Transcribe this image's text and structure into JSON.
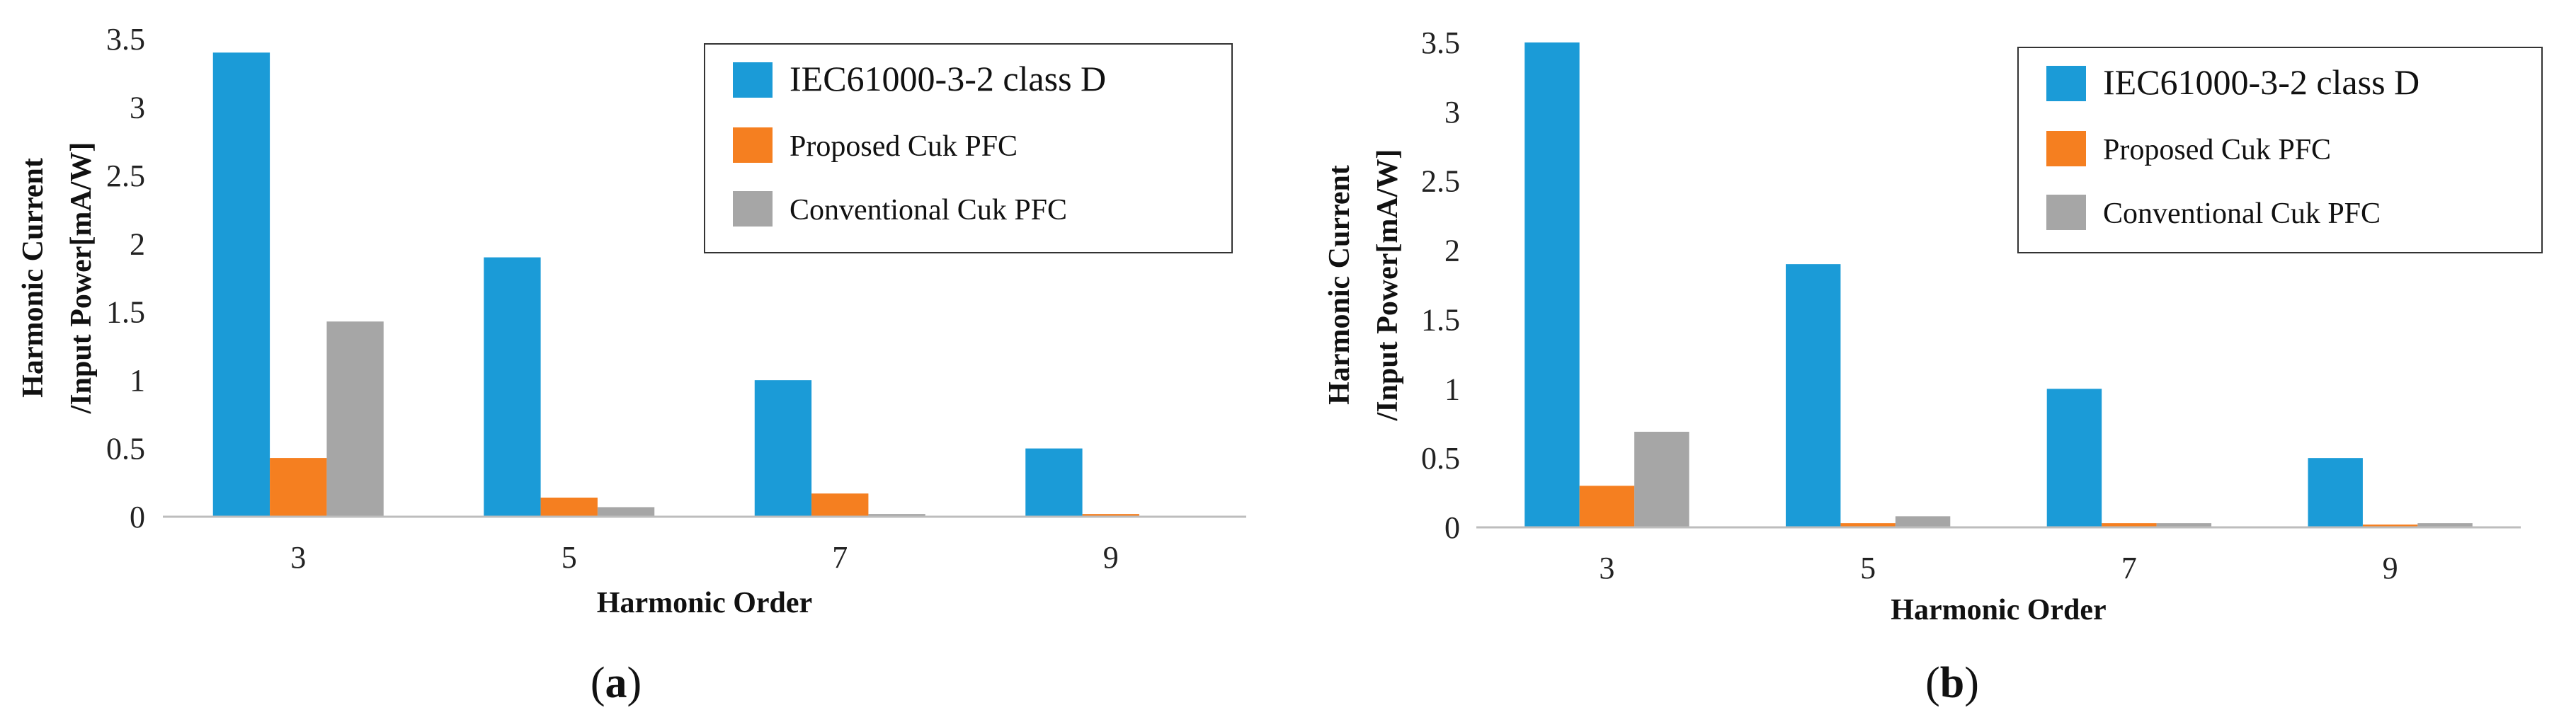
{
  "chart_data": [
    {
      "type": "bar",
      "panel": "a",
      "caption_open": "(",
      "caption_letter": "a",
      "caption_close": ")",
      "categories": [
        "3",
        "5",
        "7",
        "9"
      ],
      "series": [
        {
          "name": "IEC61000-3-2 class D",
          "color": "#1b9bd7",
          "values": [
            3.4,
            1.9,
            1.0,
            0.5
          ]
        },
        {
          "name": "Proposed Cuk PFC",
          "color": "#f57f20",
          "values": [
            0.43,
            0.14,
            0.17,
            0.02
          ]
        },
        {
          "name": "Conventional Cuk PFC",
          "color": "#a6a6a6",
          "values": [
            1.43,
            0.07,
            0.02,
            0.0
          ]
        }
      ],
      "yticks": [
        "0",
        "0.5",
        "1",
        "1.5",
        "2",
        "2.5",
        "3",
        "3.5"
      ],
      "ylim": [
        0,
        3.5
      ],
      "xlabel": "Harmonic Order",
      "ylabel_line1": "Harmonic Current",
      "ylabel_line2": "/Input Power[mA/W]",
      "legend_position": "top-right"
    },
    {
      "type": "bar",
      "panel": "b",
      "caption_open": "(",
      "caption_letter": "b",
      "caption_close": ")",
      "categories": [
        "3",
        "5",
        "7",
        "9"
      ],
      "series": [
        {
          "name": "IEC61000-3-2 class D",
          "color": "#1b9bd7",
          "values": [
            3.5,
            1.9,
            1.0,
            0.5
          ]
        },
        {
          "name": "Proposed Cuk PFC",
          "color": "#f57f20",
          "values": [
            0.3,
            0.03,
            0.03,
            0.02
          ]
        },
        {
          "name": "Conventional Cuk PFC",
          "color": "#a6a6a6",
          "values": [
            0.69,
            0.08,
            0.03,
            0.03
          ]
        }
      ],
      "yticks": [
        "0",
        "0.5",
        "1",
        "1.5",
        "2",
        "2.5",
        "3",
        "3.5"
      ],
      "ylim": [
        0,
        3.5
      ],
      "xlabel": "Harmonic Order",
      "ylabel_line1": "Harmonic Current",
      "ylabel_line2": "/Input Power[mA/W]",
      "legend_position": "top-right"
    }
  ]
}
